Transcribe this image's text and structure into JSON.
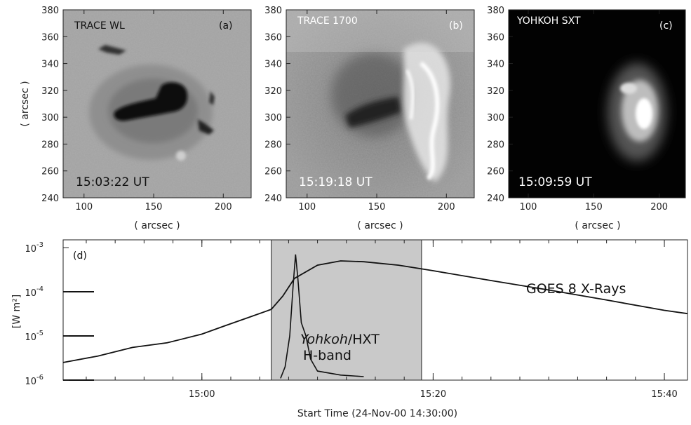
{
  "panels": [
    {
      "instrument": "TRACE WL",
      "tag": "(a)",
      "time": "15:03:22 UT",
      "x_ticks": [
        "100",
        "150",
        "200"
      ],
      "y_ticks": [
        "380",
        "360",
        "340",
        "320",
        "300",
        "280",
        "260",
        "240"
      ],
      "xlabel": "( arcsec )",
      "ylabel": "( arcsec )"
    },
    {
      "instrument": "TRACE 1700",
      "tag": "(b)",
      "time": "15:19:18 UT",
      "x_ticks": [
        "100",
        "150",
        "200"
      ],
      "y_ticks": [
        "380",
        "360",
        "340",
        "320",
        "300",
        "280",
        "260",
        "240"
      ],
      "xlabel": "( arcsec )"
    },
    {
      "instrument": "YOHKOH SXT",
      "tag": "(c)",
      "time": "15:09:59 UT",
      "x_ticks": [
        "100",
        "150",
        "200"
      ],
      "y_ticks": [
        "380",
        "360",
        "340",
        "320",
        "300",
        "280",
        "260",
        "240"
      ],
      "xlabel": "( arcsec )"
    }
  ],
  "lightcurve": {
    "tag": "(d)",
    "goes_label": "GOES 8 X-Rays",
    "hxt_label_italic": "Yohkoh",
    "hxt_label_rest": "/HXT",
    "hxt_band": "H-band",
    "ylabel": "[W m²]",
    "y_ticks": [
      {
        "base": "10",
        "exp": "-3"
      },
      {
        "base": "10",
        "exp": "-4"
      },
      {
        "base": "10",
        "exp": "-5"
      },
      {
        "base": "10",
        "exp": "-6"
      }
    ],
    "x_ticks": [
      "15:00",
      "15:20",
      "15:40"
    ],
    "xlabel": "Start Time (24-Nov-00 14:30:00)"
  },
  "chart_data": {
    "type": "line",
    "title": "",
    "xlabel": "Start Time (24-Nov-00 14:30:00)",
    "ylabel": "[W m²]",
    "y_scale": "log",
    "ylim": [
      1e-06,
      0.0015
    ],
    "xlim": [
      "14:48",
      "15:42"
    ],
    "shaded_interval": [
      "15:06",
      "15:19"
    ],
    "series": [
      {
        "name": "GOES 8 X-Rays",
        "x": [
          "14:48",
          "14:51",
          "14:54",
          "14:57",
          "15:00",
          "15:02",
          "15:04",
          "15:06",
          "15:07",
          "15:08",
          "15:10",
          "15:12",
          "15:14",
          "15:17",
          "15:20",
          "15:25",
          "15:30",
          "15:35",
          "15:40",
          "15:42"
        ],
        "values": [
          2.5e-06,
          3.5e-06,
          5.5e-06,
          7e-06,
          1.1e-05,
          1.7e-05,
          2.6e-05,
          4e-05,
          8e-05,
          0.0002,
          0.0004,
          0.0005,
          0.00048,
          0.0004,
          0.0003,
          0.00018,
          0.00011,
          6.5e-05,
          3.8e-05,
          3.2e-05
        ]
      },
      {
        "name": "Yohkoh/HXT H-band",
        "x": [
          "15:06.8",
          "15:07.2",
          "15:07.6",
          "15:07.9",
          "15:08.1",
          "15:08.3",
          "15:08.6",
          "15:09.0",
          "15:09.4",
          "15:10",
          "15:12",
          "15:14"
        ],
        "values": [
          1.1e-06,
          2e-06,
          1e-05,
          0.00015,
          0.0007,
          0.0002,
          2e-05,
          1e-05,
          3e-06,
          1.6e-06,
          1.3e-06,
          1.2e-06
        ]
      }
    ],
    "reference_levels": [
      0.0001,
      1e-05,
      1e-06
    ]
  }
}
